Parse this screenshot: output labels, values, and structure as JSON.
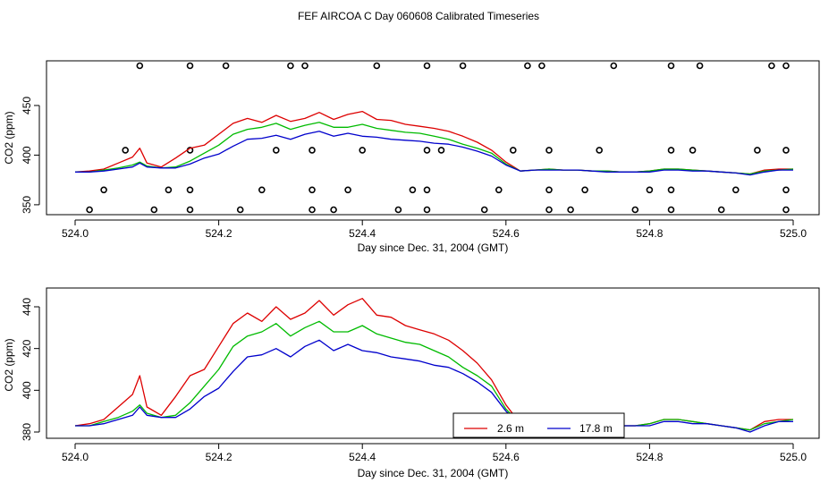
{
  "figure_title": "FEF AIRCOA C  Day 060608  Calibrated Timeseries",
  "colors": {
    "red": "#dd0000",
    "green": "#00bb00",
    "blue": "#0000cc",
    "axis": "#000000",
    "background": "#ffffff"
  },
  "chart_data": [
    {
      "type": "line",
      "title": "",
      "xlabel": "Day since Dec. 31, 2004 (GMT)",
      "ylabel": "CO2 (ppm)",
      "xlim": [
        524.0,
        525.0
      ],
      "ylim": [
        340,
        495
      ],
      "x_ticks": [
        524.0,
        524.2,
        524.4,
        524.6,
        524.8,
        525.0
      ],
      "x_tick_labels": [
        "524.0",
        "524.2",
        "524.4",
        "524.6",
        "524.8",
        "525.0"
      ],
      "y_ticks": [
        350,
        400,
        450
      ],
      "y_tick_labels": [
        "350",
        "400",
        "450"
      ],
      "series_ref": "shared_series",
      "markers": {
        "style": "open-circle",
        "rows": [
          {
            "y": 490,
            "x": [
              524.09,
              524.16,
              524.21,
              524.3,
              524.32,
              524.42,
              524.49,
              524.54,
              524.63,
              524.65,
              524.75,
              524.83,
              524.87,
              524.97,
              524.99
            ]
          },
          {
            "y": 405,
            "x": [
              524.07,
              524.16,
              524.28,
              524.33,
              524.4,
              524.49,
              524.51,
              524.61,
              524.66,
              524.73,
              524.83,
              524.86,
              524.95,
              524.99
            ]
          },
          {
            "y": 365,
            "x": [
              524.04,
              524.13,
              524.16,
              524.26,
              524.33,
              524.38,
              524.47,
              524.49,
              524.59,
              524.66,
              524.71,
              524.8,
              524.83,
              524.92,
              524.99
            ]
          },
          {
            "y": 345,
            "x": [
              524.02,
              524.11,
              524.16,
              524.23,
              524.33,
              524.36,
              524.45,
              524.49,
              524.57,
              524.66,
              524.69,
              524.78,
              524.83,
              524.9,
              524.99
            ]
          }
        ]
      }
    },
    {
      "type": "line",
      "title": "",
      "xlabel": "Day since Dec. 31, 2004 (GMT)",
      "ylabel": "CO2 (ppm)",
      "xlim": [
        524.0,
        525.0
      ],
      "ylim": [
        377,
        449
      ],
      "x_ticks": [
        524.0,
        524.2,
        524.4,
        524.6,
        524.8,
        525.0
      ],
      "x_tick_labels": [
        "524.0",
        "524.2",
        "524.4",
        "524.6",
        "524.8",
        "525.0"
      ],
      "y_ticks": [
        380,
        400,
        420,
        440
      ],
      "y_tick_labels": [
        "380",
        "400",
        "420",
        "440"
      ],
      "series_ref": "shared_series",
      "legend": {
        "placement": "bottom-center",
        "entries": [
          {
            "label": "2.6 m",
            "color": "#dd0000"
          },
          {
            "label": "17.8 m",
            "color": "#0000cc"
          }
        ]
      }
    }
  ],
  "shared_series": {
    "x": [
      524.0,
      524.02,
      524.04,
      524.06,
      524.08,
      524.09,
      524.1,
      524.12,
      524.14,
      524.16,
      524.18,
      524.2,
      524.22,
      524.24,
      524.26,
      524.28,
      524.3,
      524.32,
      524.34,
      524.36,
      524.38,
      524.4,
      524.42,
      524.44,
      524.46,
      524.48,
      524.5,
      524.52,
      524.54,
      524.56,
      524.58,
      524.6,
      524.62,
      524.64,
      524.66,
      524.68,
      524.7,
      524.72,
      524.74,
      524.76,
      524.78,
      524.8,
      524.82,
      524.84,
      524.86,
      524.88,
      524.9,
      524.92,
      524.94,
      524.96,
      524.98,
      525.0
    ],
    "series": [
      {
        "name": "2.6 m",
        "color": "#dd0000",
        "values": [
          383,
          384,
          386,
          392,
          398,
          407,
          392,
          388,
          397,
          407,
          410,
          421,
          432,
          437,
          433,
          440,
          434,
          437,
          443,
          436,
          441,
          444,
          436,
          435,
          431,
          429,
          427,
          424,
          419,
          413,
          405,
          393,
          384,
          385,
          386,
          385,
          385,
          384,
          384,
          383,
          383,
          384,
          386,
          386,
          385,
          384,
          383,
          382,
          381,
          385,
          386,
          386
        ]
      },
      {
        "name": "green",
        "color": "#00bb00",
        "values": [
          383,
          383,
          385,
          387,
          390,
          393,
          389,
          387,
          388,
          394,
          402,
          410,
          421,
          426,
          428,
          432,
          426,
          430,
          433,
          428,
          428,
          431,
          427,
          425,
          423,
          422,
          419,
          416,
          411,
          407,
          402,
          391,
          384,
          385,
          386,
          385,
          385,
          384,
          384,
          383,
          383,
          384,
          386,
          386,
          385,
          384,
          383,
          382,
          381,
          384,
          385,
          386
        ]
      },
      {
        "name": "17.8 m",
        "color": "#0000cc",
        "values": [
          383,
          383,
          384,
          386,
          388,
          392,
          388,
          387,
          387,
          391,
          397,
          401,
          409,
          416,
          417,
          420,
          416,
          421,
          424,
          419,
          422,
          419,
          418,
          416,
          415,
          414,
          412,
          411,
          408,
          404,
          399,
          390,
          384,
          385,
          385,
          385,
          385,
          384,
          383,
          383,
          383,
          383,
          385,
          385,
          384,
          384,
          383,
          382,
          380,
          383,
          385,
          385
        ]
      }
    ]
  }
}
